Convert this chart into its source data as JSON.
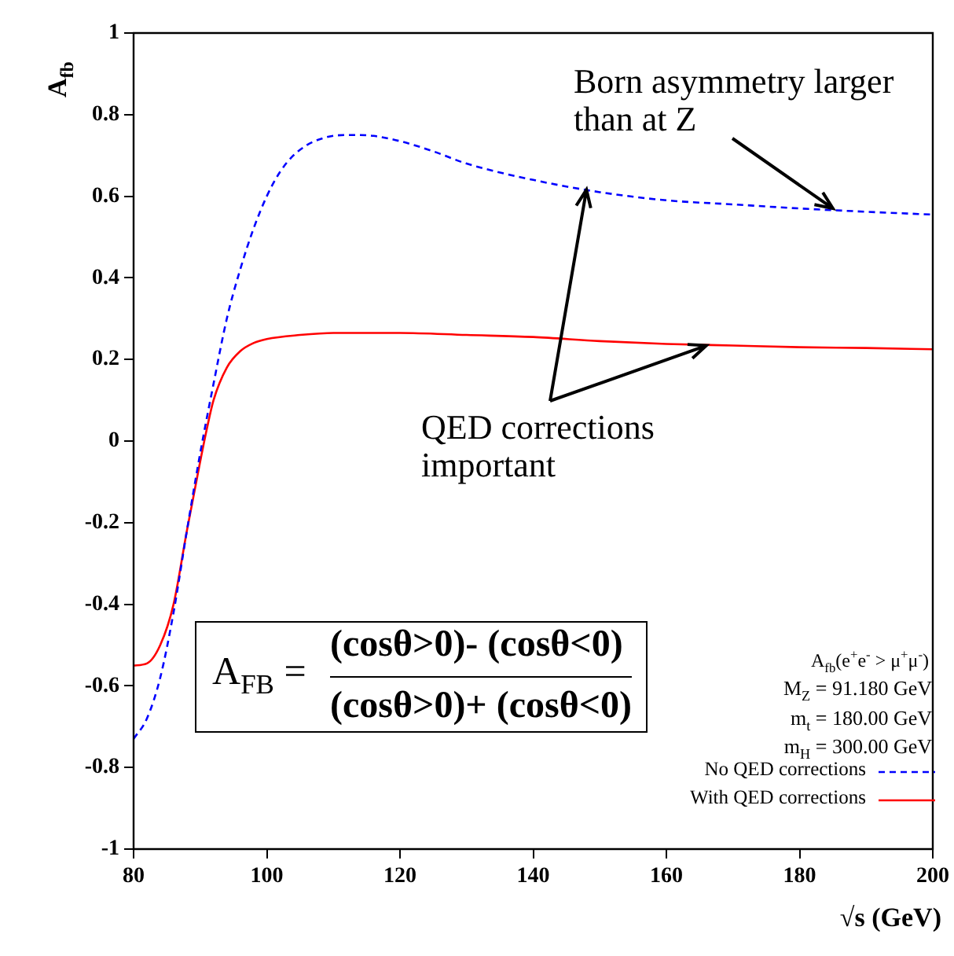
{
  "chart_data": {
    "type": "line",
    "xlabel": "√s (GeV)",
    "ylabel": "A$_{fb}$",
    "xlim": [
      80,
      200
    ],
    "xticks": [
      80,
      100,
      120,
      140,
      160,
      180,
      200
    ],
    "ylim": [
      -1,
      1
    ],
    "yticks": [
      -1,
      -0.8,
      -0.6,
      -0.4,
      -0.2,
      0,
      0.2,
      0.4,
      0.6,
      0.8,
      1
    ],
    "grid": false,
    "legend": "bottom right",
    "marker": "none",
    "series": [
      {
        "name": "No QED corrections",
        "color": "#0000ff",
        "line_style": "dashed",
        "x": [
          80,
          82,
          84,
          86,
          88,
          90,
          92,
          94,
          96,
          98,
          100,
          102,
          104,
          106,
          108,
          110,
          112,
          114,
          116,
          120,
          125,
          130,
          140,
          150,
          160,
          170,
          180,
          190,
          200
        ],
        "values": [
          -0.73,
          -0.68,
          -0.58,
          -0.42,
          -0.22,
          -0.03,
          0.14,
          0.3,
          0.42,
          0.52,
          0.6,
          0.66,
          0.7,
          0.725,
          0.74,
          0.748,
          0.75,
          0.75,
          0.748,
          0.735,
          0.71,
          0.68,
          0.64,
          0.61,
          0.59,
          0.58,
          0.57,
          0.562,
          0.555
        ]
      },
      {
        "name": "With QED corrections",
        "color": "#ff0000",
        "line_style": "solid",
        "x": [
          80,
          82,
          84,
          86,
          88,
          90,
          91,
          92,
          94,
          96,
          98,
          100,
          105,
          110,
          120,
          130,
          140,
          150,
          160,
          170,
          180,
          190,
          200
        ],
        "values": [
          -0.55,
          -0.545,
          -0.5,
          -0.4,
          -0.22,
          -0.05,
          0.03,
          0.1,
          0.18,
          0.22,
          0.24,
          0.25,
          0.26,
          0.265,
          0.265,
          0.26,
          0.255,
          0.245,
          0.238,
          0.234,
          0.23,
          0.228,
          0.225
        ]
      }
    ],
    "annotations": [
      {
        "text": "Born asymmetry larger than at Z",
        "x": 185,
        "y": 0.57
      },
      {
        "text": "QED corrections important",
        "x": 166,
        "y": 0.234
      },
      "A$_{FB}$ =",
      "(cosθ>0)- (cosθ<0)",
      "(cosθ>0)+ (cosθ<0)",
      "A$_{fb}$(e$^{+}$e$^{-}$ > μ$^{+}$μ$^{-}$)",
      "M$_{Z}$ = 91.180 GeV",
      "m$_{t}$ = 180.00 GeV",
      "m$_{H}$ = 300.00 GeV"
    ]
  }
}
